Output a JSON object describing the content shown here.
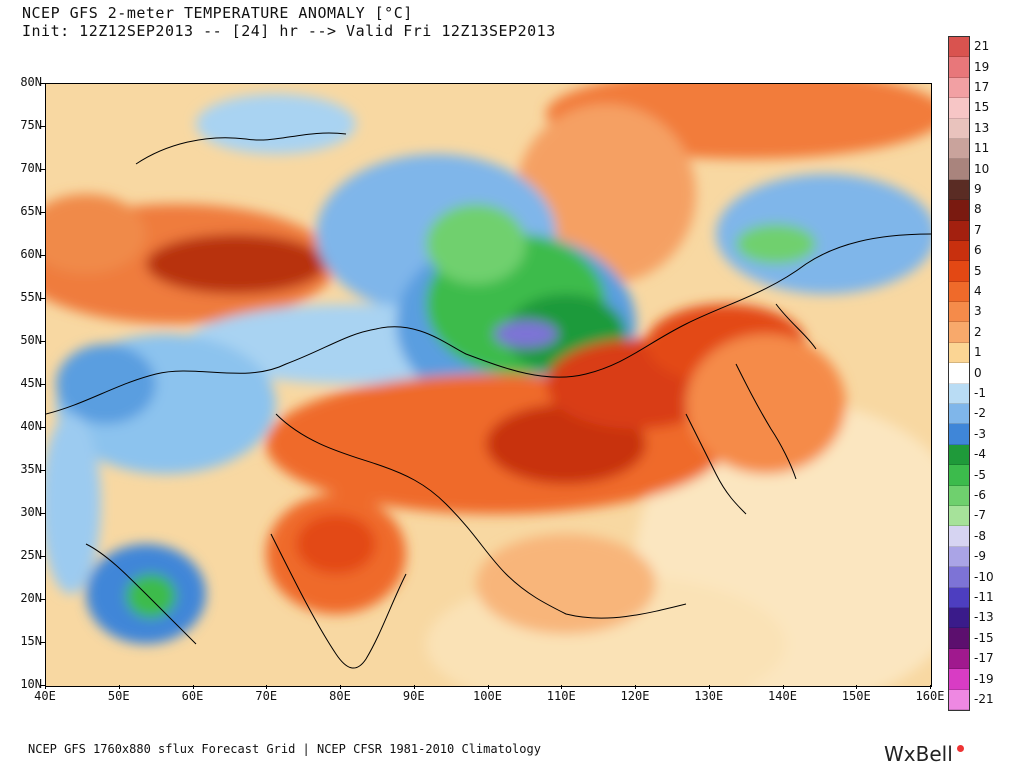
{
  "header": {
    "title_line1": "NCEP GFS 2-meter TEMPERATURE ANOMALY [°C]",
    "title_line2": "Init: 12Z12SEP2013 -- [24] hr --> Valid Fri 12Z13SEP2013"
  },
  "map": {
    "lat_labels": [
      "80N",
      "75N",
      "70N",
      "65N",
      "60N",
      "55N",
      "50N",
      "45N",
      "40N",
      "35N",
      "30N",
      "25N",
      "20N",
      "15N",
      "10N"
    ],
    "lon_labels": [
      "40E",
      "50E",
      "60E",
      "70E",
      "80E",
      "90E",
      "100E",
      "110E",
      "120E",
      "130E",
      "140E",
      "150E",
      "160E"
    ],
    "lat_range": [
      10,
      80
    ],
    "lon_range": [
      40,
      160
    ]
  },
  "legend": {
    "entries": [
      {
        "label": "21",
        "color": "#d9534f"
      },
      {
        "label": "19",
        "color": "#e8777a"
      },
      {
        "label": "17",
        "color": "#f2a0a3"
      },
      {
        "label": "15",
        "color": "#f7c6c6"
      },
      {
        "label": "13",
        "color": "#e9c3bd"
      },
      {
        "label": "11",
        "color": "#c9a39c"
      },
      {
        "label": "10",
        "color": "#a9847d"
      },
      {
        "label": "9",
        "color": "#5a2c24"
      },
      {
        "label": "8",
        "color": "#7a1a10"
      },
      {
        "label": "7",
        "color": "#a3200f"
      },
      {
        "label": "6",
        "color": "#c8300e"
      },
      {
        "label": "5",
        "color": "#e34814"
      },
      {
        "label": "4",
        "color": "#ef6a2a"
      },
      {
        "label": "3",
        "color": "#f58b4a"
      },
      {
        "label": "2",
        "color": "#f8a96b"
      },
      {
        "label": "1",
        "color": "#fbd594"
      },
      {
        "label": "0",
        "color": "#ffffff"
      },
      {
        "label": "-1",
        "color": "#b9dcf4"
      },
      {
        "label": "-2",
        "color": "#7fb6ea"
      },
      {
        "label": "-3",
        "color": "#3f86d8"
      },
      {
        "label": "-4",
        "color": "#1f9a3a"
      },
      {
        "label": "-5",
        "color": "#3cbb4c"
      },
      {
        "label": "-6",
        "color": "#6fd06e"
      },
      {
        "label": "-7",
        "color": "#a6e29a"
      },
      {
        "label": "-8",
        "color": "#d6d4f2"
      },
      {
        "label": "-9",
        "color": "#aaa4e6"
      },
      {
        "label": "-10",
        "color": "#7d73d6"
      },
      {
        "label": "-11",
        "color": "#4d3ec0"
      },
      {
        "label": "-13",
        "color": "#3a1b8a"
      },
      {
        "label": "-15",
        "color": "#5c0f6e"
      },
      {
        "label": "-17",
        "color": "#a0198e"
      },
      {
        "label": "-19",
        "color": "#d83cc4"
      },
      {
        "label": "-21",
        "color": "#ee88e2"
      }
    ]
  },
  "footer": {
    "source": "NCEP GFS 1760x880 sflux Forecast Grid | NCEP CFSR 1981-2010 Climatology",
    "brand": "WxBell"
  }
}
